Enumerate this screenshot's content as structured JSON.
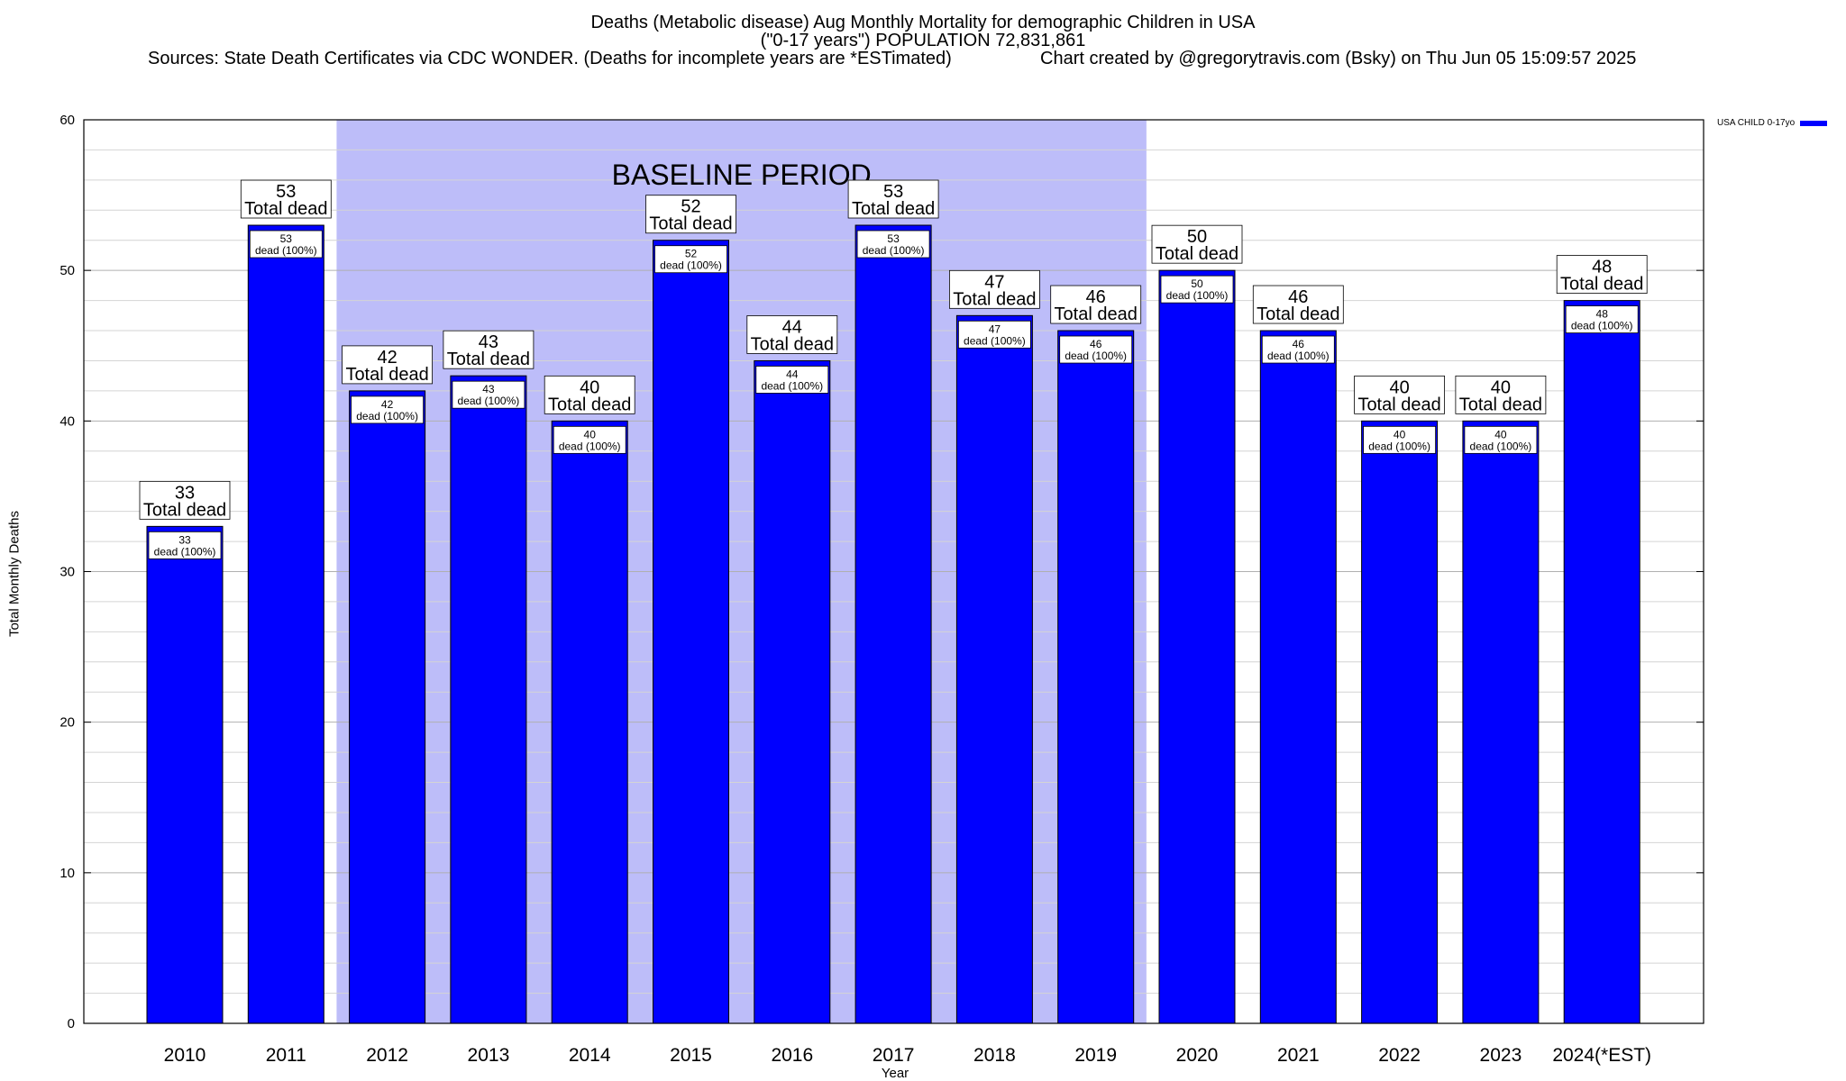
{
  "header": {
    "title_line1": "Deaths (Metabolic disease) Aug Monthly Mortality for demographic Children in USA",
    "title_line2": "(\"0-17 years\") POPULATION 72,831,861",
    "sources": "Sources: State Death Certificates via CDC WONDER. (Deaths for incomplete years are *ESTimated)",
    "credit": "Chart created by @gregorytravis.com (Bsky) on Thu Jun 05 15:09:57 2025"
  },
  "legend": {
    "label": "USA CHILD 0-17yo",
    "color": "#0000ff"
  },
  "colors": {
    "bar": "#0000ff",
    "baseline_band": "#bdbdf9"
  },
  "chart_data": {
    "type": "bar",
    "xlabel": "Year",
    "ylabel": "Total Monthly Deaths",
    "ylim": [
      0,
      60
    ],
    "yticks": [
      0,
      10,
      20,
      30,
      40,
      50,
      60
    ],
    "grid": true,
    "legend_position": "top-right",
    "categories": [
      "2010",
      "2011",
      "2012",
      "2013",
      "2014",
      "2015",
      "2016",
      "2017",
      "2018",
      "2019",
      "2020",
      "2021",
      "2022",
      "2023",
      "2024(*EST)"
    ],
    "series": [
      {
        "name": "USA CHILD 0-17yo",
        "values": [
          33,
          53,
          42,
          43,
          40,
          52,
          44,
          53,
          47,
          46,
          50,
          46,
          40,
          40,
          48
        ]
      }
    ],
    "total_label_suffix": "Total dead",
    "inner_label_suffix": "dead (100%)",
    "baseline_period": {
      "label": "BASELINE PERIOD",
      "start_category": "2012",
      "end_category": "2019"
    }
  }
}
